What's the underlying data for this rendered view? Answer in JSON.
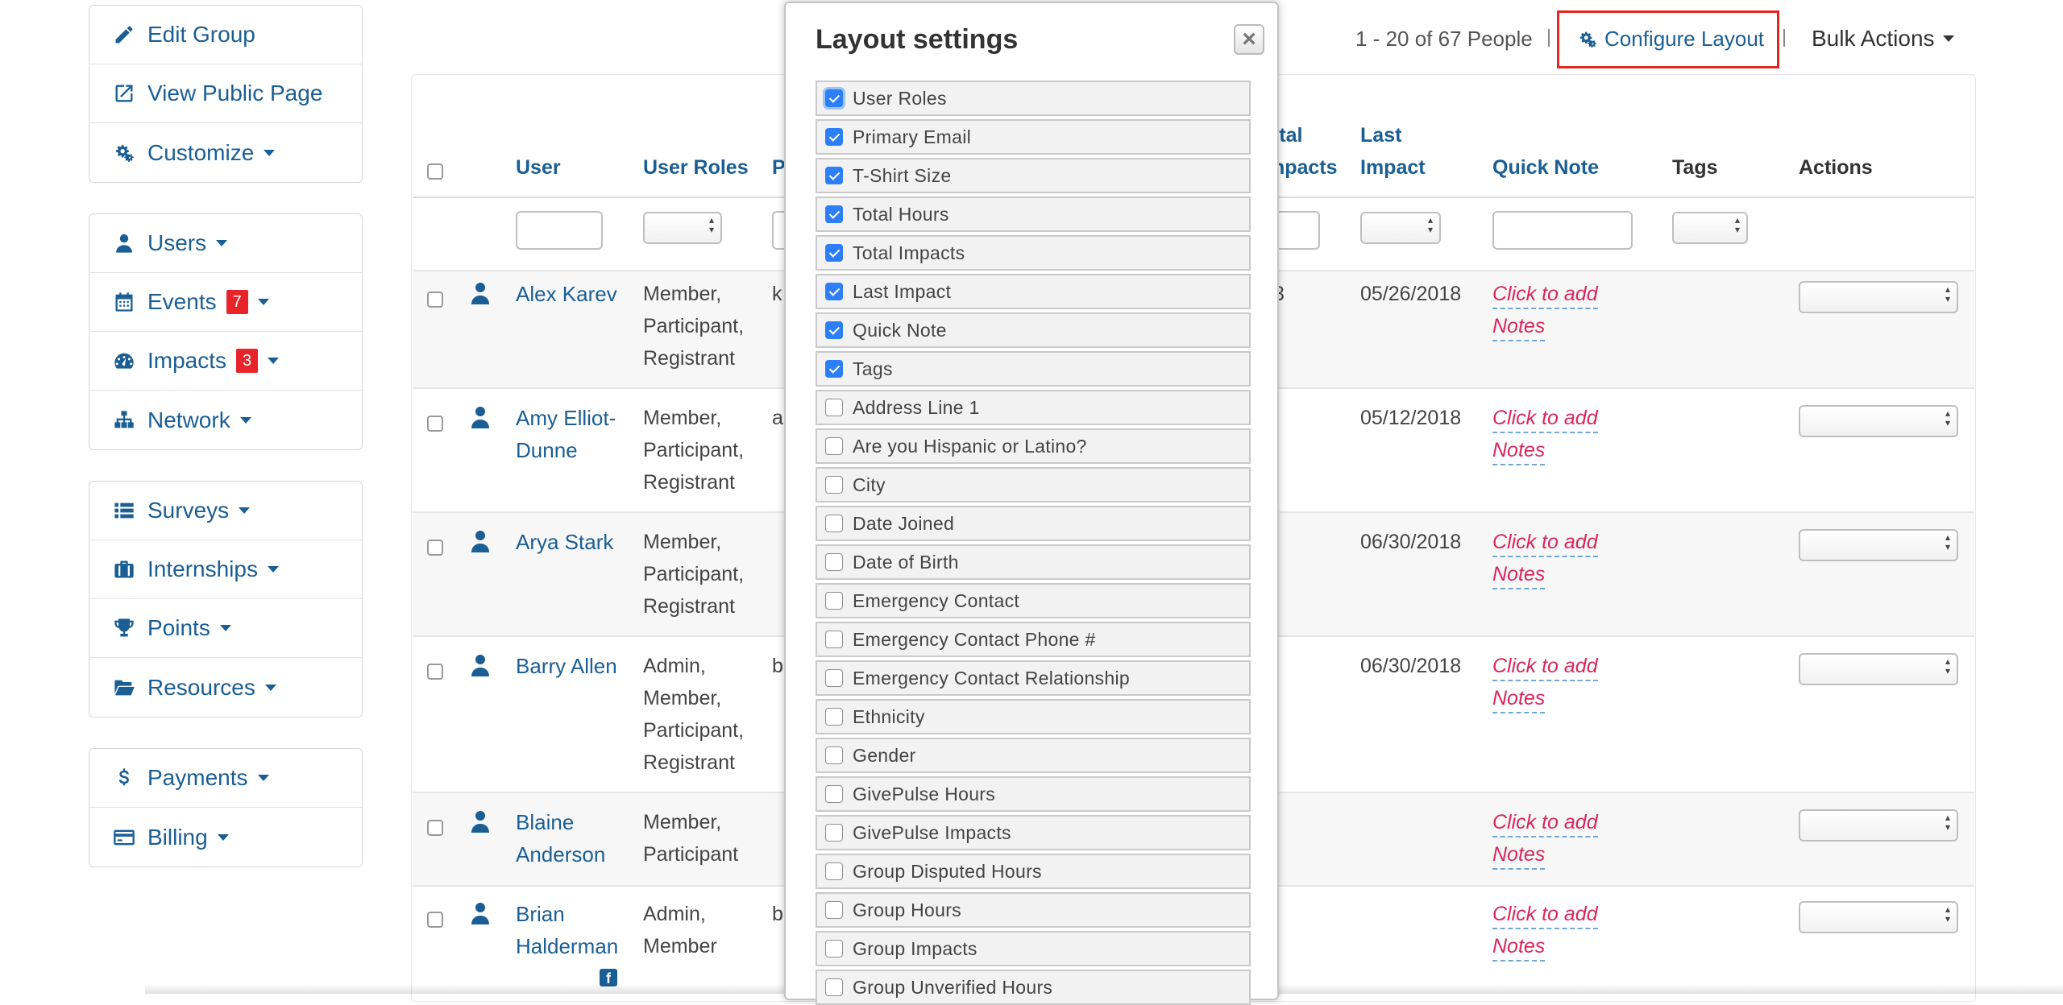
{
  "sidebar": {
    "groups": [
      [
        {
          "label": "Edit Group",
          "icon": "pencil-icon",
          "caret": false
        },
        {
          "label": "View Public Page",
          "icon": "external-link-icon",
          "caret": false
        },
        {
          "label": "Customize",
          "icon": "gears-icon",
          "caret": true
        }
      ],
      [
        {
          "label": "Users",
          "icon": "user-icon",
          "caret": true
        },
        {
          "label": "Events",
          "icon": "calendar-icon",
          "caret": true,
          "badge": "7"
        },
        {
          "label": "Impacts",
          "icon": "dashboard-icon",
          "caret": true,
          "badge": "3"
        },
        {
          "label": "Network",
          "icon": "sitemap-icon",
          "caret": true
        }
      ],
      [
        {
          "label": "Surveys",
          "icon": "list-icon",
          "caret": true
        },
        {
          "label": "Internships",
          "icon": "briefcase-icon",
          "caret": true
        },
        {
          "label": "Points",
          "icon": "trophy-icon",
          "caret": true
        },
        {
          "label": "Resources",
          "icon": "folder-open-icon",
          "caret": true
        }
      ],
      [
        {
          "label": "Payments",
          "icon": "dollar-icon",
          "caret": true
        },
        {
          "label": "Billing",
          "icon": "credit-card-icon",
          "caret": true
        }
      ]
    ]
  },
  "toolbar": {
    "pager": "1 - 20 of 67 People",
    "configure_layout": "Configure Layout",
    "bulk_actions": "Bulk Actions"
  },
  "table": {
    "headers": {
      "user": "User",
      "user_roles": "User Roles",
      "primary_partial": "P",
      "total_impacts_l1": "otal",
      "total_impacts_l2": "mpacts",
      "last_impact_l1": "Last",
      "last_impact_l2": "Impact",
      "quick_note": "Quick Note",
      "tags": "Tags",
      "actions": "Actions"
    },
    "rows": [
      {
        "name": [
          "Alex Karev"
        ],
        "roles": [
          "Member,",
          "Participant,",
          "Registrant"
        ],
        "email_clip": "k",
        "impacts_clip": "3",
        "last_impact": "05/26/2018",
        "note": [
          "Click to add",
          "Notes"
        ]
      },
      {
        "name": [
          "Amy Elliot-",
          "Dunne"
        ],
        "roles": [
          "Member,",
          "Participant,",
          "Registrant"
        ],
        "email_clip": "a",
        "impacts_clip": "",
        "last_impact": "05/12/2018",
        "note": [
          "Click to add",
          "Notes"
        ]
      },
      {
        "name": [
          "Arya Stark"
        ],
        "roles": [
          "Member,",
          "Participant,",
          "Registrant"
        ],
        "email_clip": "",
        "impacts_clip": "",
        "last_impact": "06/30/2018",
        "note": [
          "Click to add",
          "Notes"
        ]
      },
      {
        "name": [
          "Barry Allen"
        ],
        "roles": [
          "Admin,",
          "Member,",
          "Participant,",
          "Registrant"
        ],
        "email_clip": "b",
        "impacts_clip": "",
        "last_impact": "06/30/2018",
        "note": [
          "Click to add",
          "Notes"
        ]
      },
      {
        "name": [
          "Blaine",
          "Anderson"
        ],
        "roles": [
          "Member,",
          "Participant"
        ],
        "email_clip": "",
        "impacts_clip": "",
        "last_impact": "",
        "note": [
          "Click to add",
          "Notes"
        ]
      },
      {
        "name": [
          "Brian",
          "Halderman"
        ],
        "roles": [
          "Admin,",
          "Member"
        ],
        "email_clip": "b",
        "impacts_clip": "",
        "last_impact": "",
        "note": [
          "Click to add",
          "Notes"
        ]
      }
    ]
  },
  "modal": {
    "title": "Layout settings",
    "close_label": "×",
    "options": [
      {
        "label": "User Roles",
        "checked": true
      },
      {
        "label": "Primary Email",
        "checked": true
      },
      {
        "label": "T-Shirt Size",
        "checked": true
      },
      {
        "label": "Total Hours",
        "checked": true
      },
      {
        "label": "Total Impacts",
        "checked": true
      },
      {
        "label": "Last Impact",
        "checked": true
      },
      {
        "label": "Quick Note",
        "checked": true
      },
      {
        "label": "Tags",
        "checked": true
      },
      {
        "label": "Address Line 1",
        "checked": false
      },
      {
        "label": "Are you Hispanic or Latino?",
        "checked": false
      },
      {
        "label": "City",
        "checked": false
      },
      {
        "label": "Date Joined",
        "checked": false
      },
      {
        "label": "Date of Birth",
        "checked": false
      },
      {
        "label": "Emergency Contact",
        "checked": false
      },
      {
        "label": "Emergency Contact Phone #",
        "checked": false
      },
      {
        "label": "Emergency Contact Relationship",
        "checked": false
      },
      {
        "label": "Ethnicity",
        "checked": false
      },
      {
        "label": "Gender",
        "checked": false
      },
      {
        "label": "GivePulse Hours",
        "checked": false
      },
      {
        "label": "GivePulse Impacts",
        "checked": false
      },
      {
        "label": "Group Disputed Hours",
        "checked": false
      },
      {
        "label": "Group Hours",
        "checked": false
      },
      {
        "label": "Group Impacts",
        "checked": false
      },
      {
        "label": "Group Unverified Hours",
        "checked": false
      }
    ]
  },
  "colors": {
    "link": "#1a5e94",
    "badge": "#e8232a",
    "note": "#d9265c",
    "highlight": "#e52620",
    "checkbox": "#2d7ff9"
  }
}
